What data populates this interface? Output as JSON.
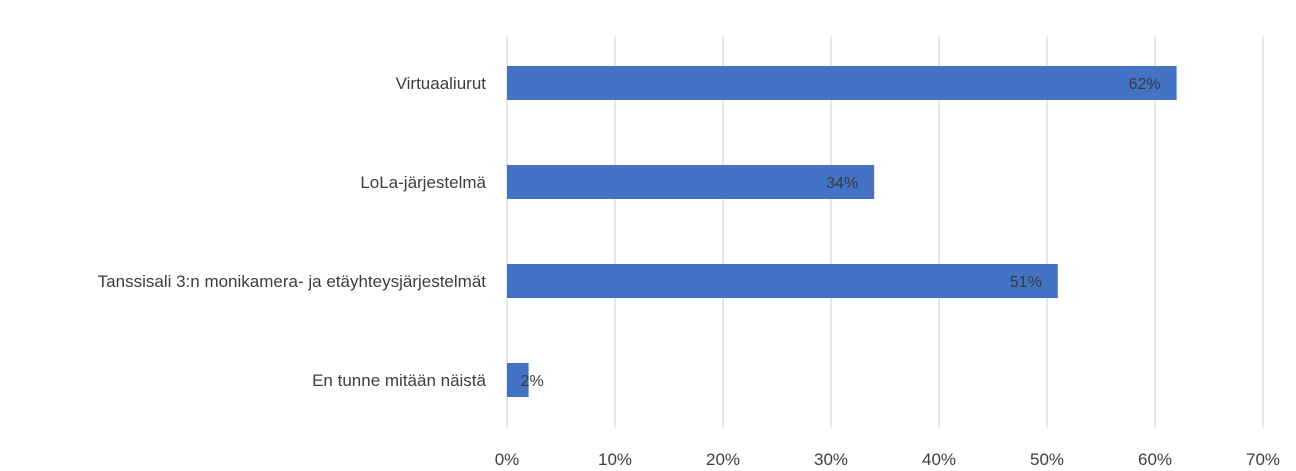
{
  "chart_data": {
    "type": "bar",
    "orientation": "horizontal",
    "categories": [
      "Virtuaaliurut",
      "LoLa-järjestelmä",
      "Tanssisali 3:n monikamera- ja etäyhteysjärjestelmät",
      "En tunne mitään näistä"
    ],
    "values": [
      62,
      34,
      51,
      2
    ],
    "data_labels": [
      "62%",
      "34%",
      "51%",
      "2%"
    ],
    "x_ticks": [
      "0%",
      "10%",
      "20%",
      "30%",
      "40%",
      "50%",
      "60%",
      "70%"
    ],
    "xlim": [
      0,
      70
    ],
    "grid": true,
    "legend": "none",
    "bar_color": "#4472c4"
  }
}
